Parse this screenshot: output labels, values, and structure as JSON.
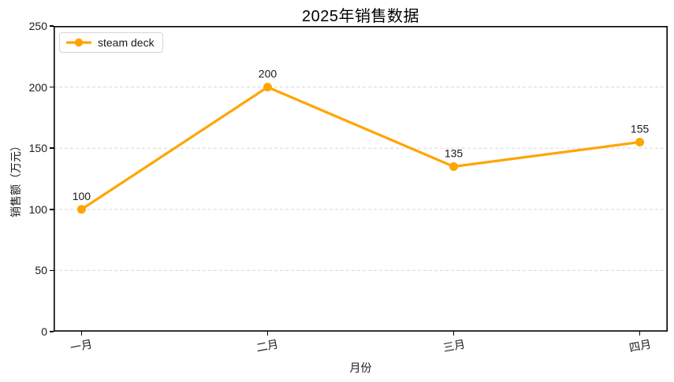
{
  "chart_data": {
    "type": "line",
    "title": "2025年销售数据",
    "xlabel": "月份",
    "ylabel": "销售额（万元）",
    "categories": [
      "一月",
      "二月",
      "三月",
      "四月"
    ],
    "series": [
      {
        "name": "steam deck",
        "color": "#FFA500",
        "marker": "circle",
        "values": [
          100,
          200,
          135,
          155
        ]
      }
    ],
    "point_labels": [
      "100",
      "200",
      "135",
      "155"
    ],
    "ylim": [
      0,
      250
    ],
    "yticks": [
      0,
      50,
      100,
      150,
      200,
      250
    ],
    "grid": {
      "axis": "y",
      "style": "dashed",
      "color": "#dcdcdc"
    },
    "legend": {
      "position": "upper-left",
      "entries": [
        "steam deck"
      ]
    },
    "xtick_rotation_deg": 11,
    "colors": {
      "text": "#1a1a1a",
      "spine": "#000000",
      "background": "#ffffff"
    }
  }
}
